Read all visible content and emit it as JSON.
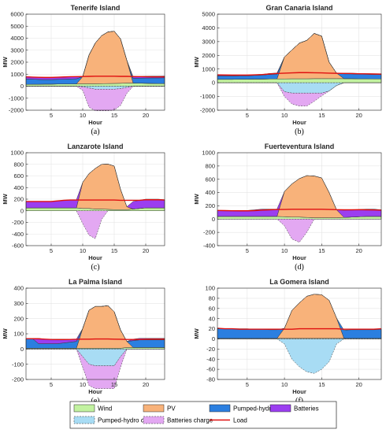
{
  "colors": {
    "wind": "#c2f2a0",
    "pv": "#f8b27a",
    "pumped_hydro": "#2b7fe0",
    "batteries": "#9b3ef0",
    "pumped_hydro_charge": "#a8dcf4",
    "batteries_charge": "#e3a8f2",
    "load": "#e01010",
    "edge": "#3a3a3a"
  },
  "legend": {
    "items": [
      {
        "key": "wind",
        "label": "Wind",
        "kind": "patch"
      },
      {
        "key": "pv",
        "label": "PV",
        "kind": "patch"
      },
      {
        "key": "pumped_hydro",
        "label": "Pumped-hydro",
        "kind": "patch"
      },
      {
        "key": "batteries",
        "label": "Batteries",
        "kind": "patch"
      },
      {
        "key": "pumped_hydro_charge",
        "label": "Pumped-hydro charge",
        "kind": "dashed"
      },
      {
        "key": "batteries_charge",
        "label": "Batteries charge",
        "kind": "dashed"
      },
      {
        "key": "load",
        "label": "Load",
        "kind": "line"
      }
    ]
  },
  "chart_data": [
    {
      "type": "area",
      "title": "Tenerife Island",
      "xlabel": "Hour",
      "ylabel": "MW",
      "sublabel": "(a)",
      "xlim": [
        1,
        23
      ],
      "ylim": [
        -2000,
        6000
      ],
      "yticks": [
        -2000,
        -1000,
        0,
        1000,
        2000,
        3000,
        4000,
        5000,
        6000
      ],
      "xticks": [
        5,
        10,
        15,
        20
      ],
      "hours": [
        1,
        2,
        3,
        4,
        5,
        6,
        7,
        8,
        9,
        10,
        11,
        12,
        13,
        14,
        15,
        16,
        17,
        18,
        19,
        20,
        21,
        22,
        23
      ],
      "wind": [
        150,
        160,
        160,
        170,
        170,
        180,
        180,
        180,
        190,
        200,
        200,
        200,
        210,
        220,
        230,
        240,
        260,
        260,
        250,
        240,
        230,
        220,
        220
      ],
      "pv": [
        0,
        0,
        0,
        0,
        0,
        0,
        0,
        0,
        0,
        600,
        2400,
        3400,
        4000,
        4300,
        4350,
        3700,
        1900,
        0,
        0,
        0,
        0,
        0,
        0
      ],
      "pumped_hydro": [
        450,
        430,
        400,
        380,
        380,
        390,
        400,
        420,
        430,
        0,
        0,
        0,
        0,
        0,
        0,
        0,
        0,
        400,
        420,
        440,
        460,
        470,
        480
      ],
      "batteries": [
        200,
        180,
        180,
        180,
        180,
        180,
        180,
        180,
        160,
        0,
        0,
        0,
        0,
        0,
        0,
        0,
        0,
        120,
        140,
        150,
        150,
        150,
        150
      ],
      "pumped_hydro_charge": [
        0,
        0,
        0,
        0,
        0,
        0,
        0,
        0,
        0,
        -50,
        -150,
        -250,
        -250,
        -250,
        -250,
        -200,
        -100,
        0,
        0,
        0,
        0,
        0,
        0
      ],
      "batteries_charge": [
        0,
        0,
        0,
        0,
        0,
        0,
        0,
        0,
        0,
        -300,
        -1600,
        -1800,
        -1800,
        -1800,
        -1750,
        -1400,
        -500,
        0,
        0,
        0,
        0,
        0,
        0
      ],
      "load": [
        780,
        760,
        740,
        730,
        730,
        750,
        770,
        790,
        800,
        810,
        820,
        830,
        830,
        830,
        830,
        820,
        820,
        810,
        800,
        790,
        780,
        780,
        780
      ]
    },
    {
      "type": "area",
      "title": "Gran Canaria Island",
      "xlabel": "Hour",
      "ylabel": "MW",
      "sublabel": "(b)",
      "xlim": [
        1,
        23
      ],
      "ylim": [
        -2000,
        5000
      ],
      "yticks": [
        -2000,
        -1000,
        0,
        1000,
        2000,
        3000,
        4000,
        5000
      ],
      "xticks": [
        5,
        10,
        15,
        20
      ],
      "hours": [
        1,
        2,
        3,
        4,
        5,
        6,
        7,
        8,
        9,
        10,
        11,
        12,
        13,
        14,
        15,
        16,
        17,
        18,
        19,
        20,
        21,
        22,
        23
      ],
      "wind": [
        250,
        250,
        250,
        260,
        260,
        270,
        270,
        280,
        280,
        280,
        290,
        290,
        290,
        300,
        300,
        300,
        300,
        300,
        300,
        290,
        290,
        280,
        280
      ],
      "pv": [
        0,
        0,
        0,
        0,
        0,
        0,
        0,
        0,
        0,
        1600,
        2100,
        2600,
        2800,
        3300,
        3100,
        1200,
        400,
        0,
        0,
        0,
        0,
        0,
        0
      ],
      "pumped_hydro": [
        250,
        250,
        250,
        250,
        250,
        270,
        290,
        330,
        350,
        0,
        0,
        0,
        0,
        0,
        0,
        0,
        0,
        350,
        350,
        340,
        330,
        330,
        330
      ],
      "batteries": [
        50,
        50,
        50,
        50,
        50,
        50,
        50,
        70,
        80,
        0,
        0,
        0,
        0,
        0,
        0,
        0,
        0,
        50,
        50,
        50,
        50,
        50,
        50
      ],
      "pumped_hydro_charge": [
        0,
        0,
        0,
        0,
        0,
        0,
        0,
        0,
        0,
        -650,
        -750,
        -750,
        -750,
        -750,
        -750,
        -600,
        -200,
        0,
        0,
        0,
        0,
        0,
        0
      ],
      "batteries_charge": [
        0,
        0,
        0,
        0,
        0,
        0,
        0,
        0,
        0,
        -350,
        -800,
        -950,
        -950,
        -600,
        -200,
        0,
        0,
        0,
        0,
        0,
        0,
        0,
        0
      ],
      "load": [
        580,
        570,
        560,
        560,
        560,
        580,
        600,
        640,
        680,
        700,
        720,
        740,
        740,
        730,
        720,
        700,
        690,
        680,
        670,
        660,
        650,
        640,
        630
      ]
    },
    {
      "type": "area",
      "title": "Lanzarote Island",
      "xlabel": "Hour",
      "ylabel": "MW",
      "sublabel": "(c)",
      "xlim": [
        1,
        23
      ],
      "ylim": [
        -600,
        1000
      ],
      "yticks": [
        -600,
        -400,
        -200,
        0,
        200,
        400,
        600,
        800,
        1000
      ],
      "xticks": [
        5,
        10,
        15,
        20
      ],
      "hours": [
        1,
        2,
        3,
        4,
        5,
        6,
        7,
        8,
        9,
        10,
        11,
        12,
        13,
        14,
        15,
        16,
        17,
        18,
        19,
        20,
        21,
        22,
        23
      ],
      "wind": [
        50,
        50,
        50,
        50,
        50,
        50,
        50,
        50,
        50,
        40,
        40,
        30,
        30,
        25,
        20,
        20,
        20,
        30,
        40,
        50,
        50,
        50,
        50
      ],
      "pv": [
        0,
        0,
        0,
        0,
        0,
        0,
        0,
        0,
        0,
        450,
        600,
        700,
        770,
        780,
        750,
        350,
        50,
        0,
        0,
        0,
        0,
        0,
        0
      ],
      "pumped_hydro": [
        0,
        0,
        0,
        0,
        0,
        0,
        0,
        0,
        0,
        0,
        0,
        0,
        0,
        0,
        0,
        0,
        0,
        0,
        0,
        0,
        0,
        0,
        0
      ],
      "batteries": [
        110,
        110,
        110,
        110,
        110,
        120,
        130,
        140,
        140,
        0,
        0,
        0,
        0,
        0,
        0,
        0,
        0,
        130,
        140,
        150,
        150,
        150,
        140
      ],
      "pumped_hydro_charge": [
        0,
        0,
        0,
        0,
        0,
        0,
        0,
        0,
        0,
        0,
        0,
        0,
        0,
        0,
        0,
        0,
        0,
        0,
        0,
        0,
        0,
        0,
        0
      ],
      "batteries_charge": [
        0,
        0,
        0,
        0,
        0,
        0,
        0,
        0,
        0,
        -220,
        -420,
        -480,
        -150,
        0,
        0,
        0,
        0,
        0,
        0,
        0,
        0,
        0,
        0
      ],
      "load": [
        160,
        160,
        160,
        160,
        160,
        170,
        180,
        185,
        185,
        185,
        185,
        185,
        185,
        185,
        185,
        180,
        180,
        180,
        180,
        190,
        190,
        190,
        185
      ]
    },
    {
      "type": "area",
      "title": "Fuerteventura Island",
      "xlabel": "Hour",
      "ylabel": "MW",
      "sublabel": "(d)",
      "xlim": [
        1,
        23
      ],
      "ylim": [
        -400,
        1000
      ],
      "yticks": [
        -400,
        -200,
        0,
        200,
        400,
        600,
        800,
        1000
      ],
      "xticks": [
        5,
        10,
        15,
        20
      ],
      "hours": [
        1,
        2,
        3,
        4,
        5,
        6,
        7,
        8,
        9,
        10,
        11,
        12,
        13,
        14,
        15,
        16,
        17,
        18,
        19,
        20,
        21,
        22,
        23
      ],
      "wind": [
        40,
        40,
        40,
        40,
        40,
        40,
        40,
        40,
        40,
        35,
        30,
        30,
        25,
        20,
        20,
        20,
        20,
        25,
        30,
        35,
        40,
        40,
        40
      ],
      "pv": [
        0,
        0,
        0,
        0,
        0,
        0,
        0,
        0,
        0,
        380,
        500,
        580,
        630,
        630,
        600,
        380,
        120,
        0,
        0,
        0,
        0,
        0,
        0
      ],
      "pumped_hydro": [
        0,
        0,
        0,
        0,
        0,
        0,
        0,
        0,
        0,
        0,
        0,
        0,
        0,
        0,
        0,
        0,
        0,
        0,
        0,
        0,
        0,
        0,
        0
      ],
      "batteries": [
        90,
        90,
        90,
        90,
        90,
        100,
        110,
        110,
        110,
        0,
        0,
        0,
        0,
        0,
        0,
        0,
        0,
        110,
        110,
        110,
        110,
        110,
        100
      ],
      "pumped_hydro_charge": [
        0,
        0,
        0,
        0,
        0,
        0,
        0,
        0,
        0,
        0,
        0,
        0,
        0,
        0,
        0,
        0,
        0,
        0,
        0,
        0,
        0,
        0,
        0
      ],
      "batteries_charge": [
        0,
        0,
        0,
        0,
        0,
        0,
        0,
        0,
        0,
        -100,
        -300,
        -350,
        -200,
        0,
        0,
        0,
        0,
        0,
        0,
        0,
        0,
        0,
        0
      ],
      "load": [
        130,
        128,
        126,
        125,
        125,
        128,
        135,
        140,
        145,
        145,
        148,
        148,
        148,
        148,
        148,
        145,
        142,
        140,
        140,
        142,
        140,
        138,
        135
      ]
    },
    {
      "type": "area",
      "title": "La Palma Island",
      "xlabel": "Hour",
      "ylabel": "MW",
      "sublabel": "(e)",
      "xlim": [
        1,
        23
      ],
      "ylim": [
        -200,
        400
      ],
      "yticks": [
        -200,
        -100,
        0,
        100,
        200,
        300,
        400
      ],
      "xticks": [
        5,
        10,
        15,
        20
      ],
      "hours": [
        1,
        2,
        3,
        4,
        5,
        6,
        7,
        8,
        9,
        10,
        11,
        12,
        13,
        14,
        15,
        16,
        17,
        18,
        19,
        20,
        21,
        22,
        23
      ],
      "wind": [
        5,
        5,
        5,
        5,
        5,
        5,
        5,
        5,
        5,
        5,
        5,
        5,
        5,
        5,
        5,
        5,
        10,
        10,
        10,
        10,
        10,
        10,
        10
      ],
      "pv": [
        0,
        0,
        0,
        0,
        0,
        0,
        0,
        0,
        0,
        130,
        250,
        275,
        275,
        280,
        240,
        120,
        40,
        0,
        0,
        0,
        0,
        0,
        0
      ],
      "pumped_hydro": [
        65,
        65,
        30,
        30,
        30,
        30,
        35,
        40,
        45,
        0,
        0,
        0,
        0,
        0,
        0,
        0,
        0,
        45,
        50,
        50,
        50,
        50,
        50
      ],
      "batteries": [
        0,
        0,
        35,
        30,
        30,
        30,
        25,
        20,
        15,
        0,
        0,
        0,
        0,
        0,
        0,
        0,
        0,
        10,
        10,
        10,
        10,
        10,
        10
      ],
      "pumped_hydro_charge": [
        0,
        0,
        0,
        0,
        0,
        0,
        0,
        0,
        0,
        -50,
        -100,
        -110,
        -110,
        -110,
        -110,
        -50,
        0,
        0,
        0,
        0,
        0,
        0,
        0
      ],
      "batteries_charge": [
        0,
        0,
        0,
        0,
        0,
        0,
        0,
        0,
        0,
        -70,
        -140,
        -150,
        -150,
        -150,
        -150,
        -70,
        0,
        0,
        0,
        0,
        0,
        0,
        0
      ],
      "load": [
        68,
        68,
        67,
        65,
        63,
        62,
        62,
        63,
        64,
        65,
        65,
        66,
        66,
        66,
        65,
        64,
        63,
        63,
        63,
        64,
        65,
        65,
        65
      ]
    },
    {
      "type": "area",
      "title": "La Gomera Island",
      "xlabel": "Hour",
      "ylabel": "MW",
      "sublabel": "(f)",
      "xlim": [
        1,
        23
      ],
      "ylim": [
        -80,
        100
      ],
      "yticks": [
        -80,
        -60,
        -40,
        -20,
        0,
        20,
        40,
        60,
        80,
        100
      ],
      "xticks": [
        5,
        10,
        15,
        20
      ],
      "hours": [
        1,
        2,
        3,
        4,
        5,
        6,
        7,
        8,
        9,
        10,
        11,
        12,
        13,
        14,
        15,
        16,
        17,
        18,
        19,
        20,
        21,
        22,
        23
      ],
      "wind": [
        1,
        1,
        1,
        1,
        1,
        1,
        1,
        1,
        1,
        1,
        1,
        1,
        1,
        1,
        1,
        1,
        1,
        1,
        1,
        1,
        1,
        1,
        1
      ],
      "pv": [
        0,
        0,
        0,
        0,
        0,
        0,
        0,
        0,
        0,
        20,
        55,
        70,
        83,
        87,
        86,
        75,
        40,
        0,
        0,
        0,
        0,
        0,
        0
      ],
      "pumped_hydro": [
        20,
        19,
        19,
        19,
        19,
        18,
        18,
        17,
        17,
        0,
        0,
        0,
        0,
        0,
        0,
        0,
        0,
        16,
        17,
        17,
        17,
        17,
        18
      ],
      "batteries": [
        0,
        0,
        0,
        0,
        0,
        0,
        0,
        0,
        0,
        0,
        0,
        0,
        0,
        0,
        0,
        0,
        0,
        0,
        0,
        0,
        0,
        0,
        0
      ],
      "pumped_hydro_charge": [
        0,
        0,
        0,
        0,
        0,
        0,
        0,
        0,
        0,
        -10,
        -40,
        -55,
        -65,
        -68,
        -60,
        -45,
        -10,
        0,
        0,
        0,
        0,
        0,
        0
      ],
      "batteries_charge": [
        0,
        0,
        0,
        0,
        0,
        0,
        0,
        0,
        0,
        0,
        0,
        0,
        0,
        0,
        0,
        0,
        0,
        0,
        0,
        0,
        0,
        0,
        0
      ],
      "load": [
        21,
        20,
        20,
        19,
        19,
        19,
        19,
        19,
        19,
        19,
        19,
        20,
        20,
        20,
        20,
        20,
        20,
        19,
        19,
        19,
        19,
        19,
        20
      ]
    }
  ]
}
